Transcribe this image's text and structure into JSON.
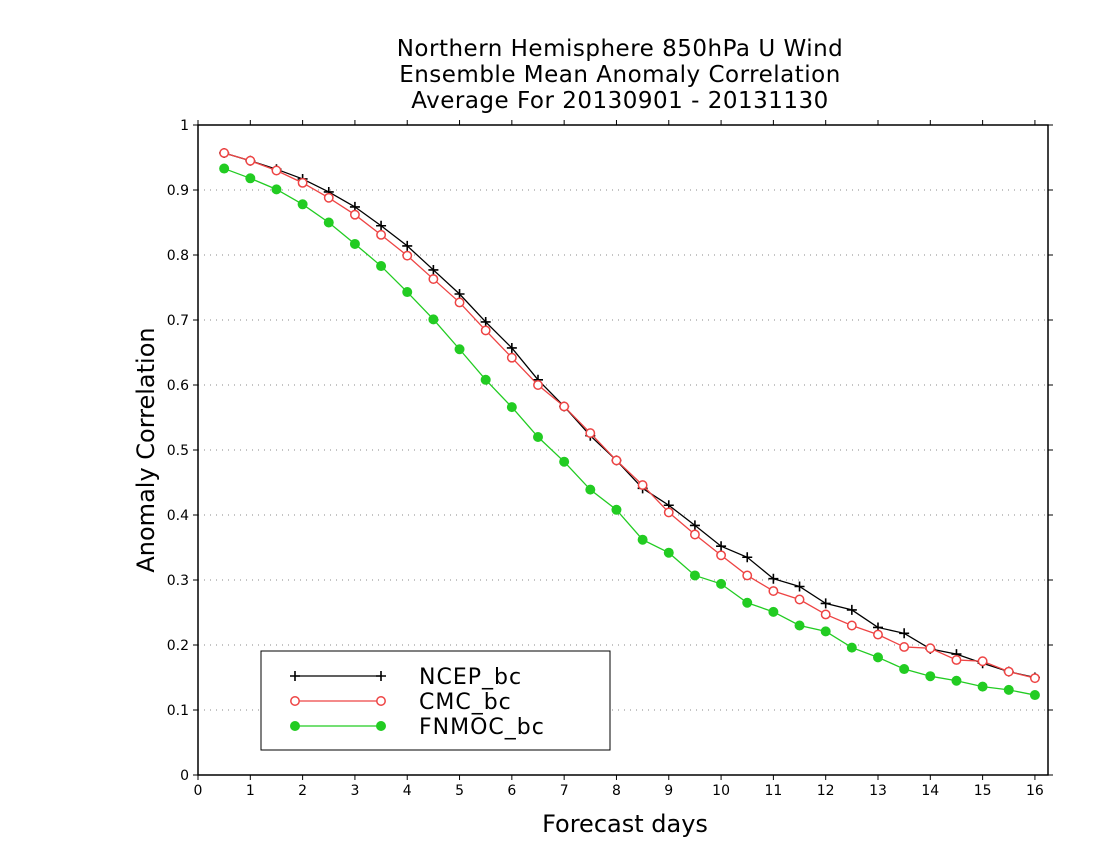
{
  "chart_data": {
    "type": "line",
    "title": [
      "Northern Hemisphere 850hPa U Wind",
      "Ensemble Mean Anomaly Correlation",
      "Average For 20130901 - 20131130"
    ],
    "xlabel": "Forecast days",
    "ylabel": "Anomaly Correlation",
    "xlim": [
      0,
      16.25
    ],
    "ylim": [
      0,
      1
    ],
    "xticks": [
      "0",
      "1",
      "2",
      "3",
      "4",
      "5",
      "6",
      "7",
      "8",
      "9",
      "10",
      "11",
      "12",
      "13",
      "14",
      "15",
      "16"
    ],
    "yticks": [
      "0",
      "0.1",
      "0.2",
      "0.3",
      "0.4",
      "0.5",
      "0.6",
      "0.7",
      "0.8",
      "0.9",
      "1"
    ],
    "grid": "horizontal dotted",
    "legend_position": "bottom-left",
    "x": [
      0.5,
      1,
      1.5,
      2,
      2.5,
      3,
      3.5,
      4,
      4.5,
      5,
      5.5,
      6,
      6.5,
      7,
      7.5,
      8,
      8.5,
      9,
      9.5,
      10,
      10.5,
      11,
      11.5,
      12,
      12.5,
      13,
      13.5,
      14,
      14.5,
      15,
      15.5,
      16
    ],
    "series": [
      {
        "name": "NCEP_bc",
        "color": "#000000",
        "marker": "plus",
        "values": [
          0.957,
          0.945,
          0.932,
          0.917,
          0.897,
          0.874,
          0.845,
          0.814,
          0.777,
          0.74,
          0.697,
          0.657,
          0.608,
          0.567,
          0.522,
          0.484,
          0.441,
          0.415,
          0.384,
          0.352,
          0.335,
          0.302,
          0.29,
          0.264,
          0.254,
          0.227,
          0.218,
          0.194,
          0.186,
          0.172,
          0.159,
          0.15
        ]
      },
      {
        "name": "CMC_bc",
        "color": "#ee4444",
        "marker": "open-circle",
        "values": [
          0.957,
          0.945,
          0.93,
          0.911,
          0.888,
          0.862,
          0.831,
          0.799,
          0.763,
          0.727,
          0.684,
          0.642,
          0.6,
          0.567,
          0.526,
          0.484,
          0.446,
          0.404,
          0.37,
          0.338,
          0.307,
          0.283,
          0.27,
          0.247,
          0.23,
          0.216,
          0.197,
          0.195,
          0.177,
          0.175,
          0.159,
          0.149
        ]
      },
      {
        "name": "FNMOC_bc",
        "color": "#22cc22",
        "marker": "filled-circle",
        "values": [
          0.933,
          0.918,
          0.901,
          0.878,
          0.85,
          0.817,
          0.783,
          0.743,
          0.701,
          0.655,
          0.608,
          0.566,
          0.52,
          0.482,
          0.439,
          0.408,
          0.362,
          0.342,
          0.307,
          0.294,
          0.265,
          0.251,
          0.23,
          0.221,
          0.196,
          0.181,
          0.163,
          0.152,
          0.145,
          0.136,
          0.131,
          0.123
        ]
      }
    ]
  }
}
